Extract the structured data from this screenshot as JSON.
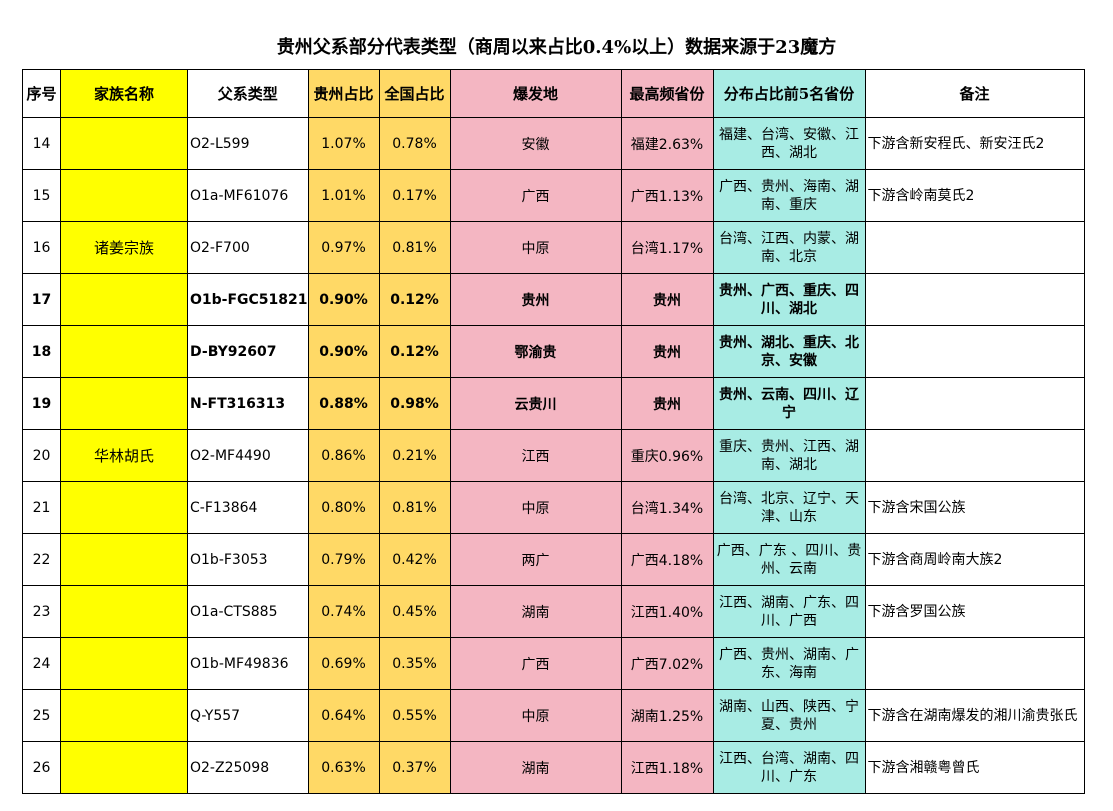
{
  "title": "贵州父系部分代表类型（商周以来占比0.4%以上）数据来源于23魔方",
  "headers": {
    "idx": "序号",
    "family": "家族名称",
    "type": "父系类型",
    "gz": "贵州占比",
    "nat": "全国占比",
    "origin": "爆发地",
    "top": "最高频省份",
    "dist": "分布占比前5名省份",
    "note": "备注"
  },
  "rows": [
    {
      "idx": "14",
      "family": "",
      "type": "O2-L599",
      "gz": "1.07%",
      "nat": "0.78%",
      "origin": "安徽",
      "top": "福建2.63%",
      "dist": "福建、台湾、安徽、江西、湖北",
      "note": "下游含新安程氏、新安汪氏2"
    },
    {
      "idx": "15",
      "family": "",
      "type": "O1a-MF61076",
      "gz": "1.01%",
      "nat": "0.17%",
      "origin": "广西",
      "top": "广西1.13%",
      "dist": "广西、贵州、海南、湖南、重庆",
      "note": "下游含岭南莫氏2"
    },
    {
      "idx": "16",
      "family": "诸姜宗族",
      "type": "O2-F700",
      "gz": "0.97%",
      "nat": "0.81%",
      "origin": "中原",
      "top": "台湾1.17%",
      "dist": "台湾、江西、内蒙、湖南、北京",
      "note": ""
    },
    {
      "idx": "17",
      "family": "",
      "type": "O1b-FGC51821",
      "gz": "0.90%",
      "nat": "0.12%",
      "origin": "贵州",
      "top": "贵州",
      "dist": "贵州、广西、重庆、四川、湖北",
      "note": ""
    },
    {
      "idx": "18",
      "family": "",
      "type": "D-BY92607",
      "gz": "0.90%",
      "nat": "0.12%",
      "origin": "鄂渝贵",
      "top": "贵州",
      "dist": "贵州、湖北、重庆、北京、安徽",
      "note": ""
    },
    {
      "idx": "19",
      "family": "",
      "type": "N-FT316313",
      "gz": "0.88%",
      "nat": "0.98%",
      "origin": "云贵川",
      "top": "贵州",
      "dist": "贵州、云南、四川、辽宁",
      "note": ""
    },
    {
      "idx": "20",
      "family": "华林胡氏",
      "type": "O2-MF4490",
      "gz": "0.86%",
      "nat": "0.21%",
      "origin": "江西",
      "top": "重庆0.96%",
      "dist": "重庆、贵州、江西、湖南、湖北",
      "note": ""
    },
    {
      "idx": "21",
      "family": "",
      "type": "C-F13864",
      "gz": "0.80%",
      "nat": "0.81%",
      "origin": "中原",
      "top": "台湾1.34%",
      "dist": "台湾、北京、辽宁、天津、山东",
      "note": "下游含宋国公族"
    },
    {
      "idx": "22",
      "family": "",
      "type": "O1b-F3053",
      "gz": "0.79%",
      "nat": "0.42%",
      "origin": "两广",
      "top": "广西4.18%",
      "dist": "广西、广东 、四川、贵州、云南",
      "note": "下游含商周岭南大族2"
    },
    {
      "idx": "23",
      "family": "",
      "type": "O1a-CTS885",
      "gz": "0.74%",
      "nat": "0.45%",
      "origin": "湖南",
      "top": "江西1.40%",
      "dist": "江西、湖南、广东、四川、广西",
      "note": "下游含罗国公族"
    },
    {
      "idx": "24",
      "family": "",
      "type": "O1b-MF49836",
      "gz": "0.69%",
      "nat": "0.35%",
      "origin": "广西",
      "top": "广西7.02%",
      "dist": "广西、贵州、湖南、广东、海南",
      "note": ""
    },
    {
      "idx": "25",
      "family": "",
      "type": "Q-Y557",
      "gz": "0.64%",
      "nat": "0.55%",
      "origin": "中原",
      "top": "湖南1.25%",
      "dist": "湖南、山西、陕西、宁夏、贵州",
      "note": "下游含在湖南爆发的湘川渝贵张氏"
    },
    {
      "idx": "26",
      "family": "",
      "type": "O2-Z25098",
      "gz": "0.63%",
      "nat": "0.37%",
      "origin": "湖南",
      "top": "江西1.18%",
      "dist": "江西、台湾、湖南、四川、广东",
      "note": "下游含湘赣粤曾氏"
    }
  ],
  "colors": {
    "family_bg": "#ffff00",
    "ratio_bg": "#ffd966",
    "origin_bg": "#f4b6c2",
    "dist_bg": "#a8ece4"
  }
}
